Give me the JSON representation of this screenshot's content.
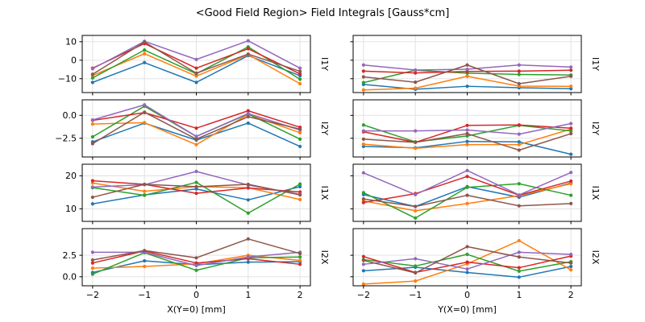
{
  "title": "<Good Field Region> Field Integrals [Gauss*cm]",
  "figure": {
    "background": "#ffffff",
    "grid_color": "#dfdfdf",
    "spine_color": "#000000"
  },
  "palette": {
    "blue": "#1f77b4",
    "orange": "#ff7f0e",
    "green": "#2ca02c",
    "red": "#d62728",
    "purple": "#9467bd",
    "brown": "#8c564b"
  },
  "chart_data": [
    {
      "type": "line",
      "grid_row": 0,
      "grid_col": 0,
      "row_label": "I1Y",
      "xlabel": "",
      "x": [
        -2,
        -1,
        0,
        1,
        2
      ],
      "xlim": [
        -2.2,
        2.2
      ],
      "xtick_labels": [
        "−2",
        "−1",
        "0",
        "1",
        "2"
      ],
      "show_xtick_labels": false,
      "ylim": [
        -17.5,
        13.4
      ],
      "grid": true,
      "show_ytick_labels": true,
      "yticks": [
        {
          "value": 10,
          "label": "10"
        },
        {
          "value": 0,
          "label": "0"
        },
        {
          "value": -10,
          "label": "−10"
        }
      ],
      "series": [
        {
          "name": "blue",
          "color": "#1f77b4",
          "values": [
            -12.0,
            -1.3,
            -12.0,
            2.5,
            -8.4
          ]
        },
        {
          "name": "orange",
          "color": "#ff7f0e",
          "values": [
            -8.3,
            3.5,
            -8.6,
            3.0,
            -12.7
          ]
        },
        {
          "name": "green",
          "color": "#2ca02c",
          "values": [
            -9.6,
            5.5,
            -7.3,
            7.2,
            -10.3
          ]
        },
        {
          "name": "red",
          "color": "#d62728",
          "values": [
            -4.3,
            9.0,
            -4.3,
            6.2,
            -7.4
          ]
        },
        {
          "name": "purple",
          "color": "#9467bd",
          "values": [
            -4.6,
            10.2,
            0.4,
            10.5,
            -4.3
          ]
        },
        {
          "name": "brown",
          "color": "#8c564b",
          "values": [
            -7.6,
            9.8,
            -7.0,
            3.3,
            -6.0
          ]
        }
      ]
    },
    {
      "type": "line",
      "grid_row": 0,
      "grid_col": 1,
      "row_label": "I1Y",
      "xlabel": "",
      "x": [
        -2,
        -1,
        0,
        1,
        2
      ],
      "xlim": [
        -2.2,
        2.2
      ],
      "xtick_labels": [
        "−2",
        "−1",
        "0",
        "1",
        "2"
      ],
      "show_xtick_labels": false,
      "ylim": [
        -17.5,
        13.4
      ],
      "grid": true,
      "show_ytick_labels": false,
      "yticks": [
        {
          "value": 10,
          "label": "10"
        },
        {
          "value": 0,
          "label": "0"
        },
        {
          "value": -10,
          "label": "−10"
        }
      ],
      "series": [
        {
          "name": "blue",
          "color": "#1f77b4",
          "values": [
            -13.1,
            -15.7,
            -14.1,
            -14.9,
            -15.4
          ]
        },
        {
          "name": "orange",
          "color": "#ff7f0e",
          "values": [
            -16.1,
            -15.1,
            -8.7,
            -14.0,
            -14.1
          ]
        },
        {
          "name": "green",
          "color": "#2ca02c",
          "values": [
            -12.1,
            -5.4,
            -7.0,
            -7.7,
            -8.0
          ]
        },
        {
          "name": "red",
          "color": "#d62728",
          "values": [
            -5.9,
            -6.9,
            -6.1,
            -5.9,
            -5.4
          ]
        },
        {
          "name": "purple",
          "color": "#9467bd",
          "values": [
            -2.6,
            -5.3,
            -4.9,
            -2.6,
            -3.7
          ]
        },
        {
          "name": "brown",
          "color": "#8c564b",
          "values": [
            -9.0,
            -11.9,
            -2.6,
            -12.7,
            -8.7
          ]
        }
      ]
    },
    {
      "type": "line",
      "grid_row": 1,
      "grid_col": 0,
      "row_label": "I2Y",
      "xlabel": "",
      "x": [
        -2,
        -1,
        0,
        1,
        2
      ],
      "xlim": [
        -2.2,
        2.2
      ],
      "xtick_labels": [
        "−2",
        "−1",
        "0",
        "1",
        "2"
      ],
      "show_xtick_labels": false,
      "ylim": [
        -4.55,
        1.7
      ],
      "grid": true,
      "show_ytick_labels": true,
      "yticks": [
        {
          "value": 0.0,
          "label": "0.0"
        },
        {
          "value": -2.5,
          "label": "−2.5"
        }
      ],
      "series": [
        {
          "name": "blue",
          "color": "#1f77b4",
          "values": [
            -2.9,
            -0.85,
            -2.7,
            -0.85,
            -3.4
          ]
        },
        {
          "name": "orange",
          "color": "#ff7f0e",
          "values": [
            -0.95,
            -0.8,
            -3.2,
            0.1,
            -1.9
          ]
        },
        {
          "name": "green",
          "color": "#2ca02c",
          "values": [
            -2.35,
            1.0,
            -2.3,
            0.15,
            -2.6
          ]
        },
        {
          "name": "red",
          "color": "#d62728",
          "values": [
            -0.55,
            0.3,
            -1.4,
            0.5,
            -1.3
          ]
        },
        {
          "name": "purple",
          "color": "#9467bd",
          "values": [
            -0.5,
            1.15,
            -2.3,
            0.2,
            -1.6
          ]
        },
        {
          "name": "brown",
          "color": "#8c564b",
          "values": [
            -3.1,
            0.35,
            -2.6,
            -0.15,
            -1.5
          ]
        }
      ]
    },
    {
      "type": "line",
      "grid_row": 1,
      "grid_col": 1,
      "row_label": "I2Y",
      "xlabel": "",
      "x": [
        -2,
        -1,
        0,
        1,
        2
      ],
      "xlim": [
        -2.2,
        2.2
      ],
      "xtick_labels": [
        "−2",
        "−1",
        "0",
        "1",
        "2"
      ],
      "show_xtick_labels": false,
      "ylim": [
        -4.55,
        1.7
      ],
      "grid": true,
      "show_ytick_labels": false,
      "yticks": [
        {
          "value": 0.0,
          "label": "0.0"
        },
        {
          "value": -2.5,
          "label": "−2.5"
        }
      ],
      "series": [
        {
          "name": "blue",
          "color": "#1f77b4",
          "values": [
            -3.4,
            -3.55,
            -2.85,
            -2.9,
            -4.25
          ]
        },
        {
          "name": "orange",
          "color": "#ff7f0e",
          "values": [
            -3.15,
            -3.6,
            -3.2,
            -3.2,
            -1.5
          ]
        },
        {
          "name": "green",
          "color": "#2ca02c",
          "values": [
            -1.05,
            -2.9,
            -2.25,
            -1.1,
            -1.7
          ]
        },
        {
          "name": "red",
          "color": "#d62728",
          "values": [
            -1.8,
            -2.95,
            -1.1,
            -1.05,
            -1.4
          ]
        },
        {
          "name": "purple",
          "color": "#9467bd",
          "values": [
            -1.7,
            -1.7,
            -1.6,
            -2.05,
            -0.9
          ]
        },
        {
          "name": "brown",
          "color": "#8c564b",
          "values": [
            -2.6,
            -2.95,
            -2.0,
            -3.8,
            -2.0
          ]
        }
      ]
    },
    {
      "type": "line",
      "grid_row": 2,
      "grid_col": 0,
      "row_label": "I1X",
      "xlabel": "",
      "x": [
        -2,
        -1,
        0,
        1,
        2
      ],
      "xlim": [
        -2.2,
        2.2
      ],
      "xtick_labels": [
        "−2",
        "−1",
        "0",
        "1",
        "2"
      ],
      "show_xtick_labels": false,
      "ylim": [
        6.2,
        23.5
      ],
      "grid": true,
      "show_ytick_labels": true,
      "yticks": [
        {
          "value": 20,
          "label": "20"
        },
        {
          "value": 10,
          "label": "10"
        }
      ],
      "series": [
        {
          "name": "blue",
          "color": "#1f77b4",
          "values": [
            11.5,
            14.2,
            16.0,
            12.7,
            16.7
          ]
        },
        {
          "name": "orange",
          "color": "#ff7f0e",
          "values": [
            17.8,
            15.3,
            16.7,
            16.4,
            12.8
          ]
        },
        {
          "name": "green",
          "color": "#2ca02c",
          "values": [
            16.4,
            14.1,
            18.0,
            8.7,
            17.5
          ]
        },
        {
          "name": "red",
          "color": "#d62728",
          "values": [
            18.5,
            17.4,
            14.7,
            16.3,
            15.1
          ]
        },
        {
          "name": "purple",
          "color": "#9467bd",
          "values": [
            16.6,
            17.3,
            21.3,
            17.2,
            14.4
          ]
        },
        {
          "name": "brown",
          "color": "#8c564b",
          "values": [
            13.5,
            17.4,
            16.7,
            17.4,
            14.2
          ]
        }
      ]
    },
    {
      "type": "line",
      "grid_row": 2,
      "grid_col": 1,
      "row_label": "I1X",
      "xlabel": "",
      "x": [
        -2,
        -1,
        0,
        1,
        2
      ],
      "xlim": [
        -2.2,
        2.2
      ],
      "xtick_labels": [
        "−2",
        "−1",
        "0",
        "1",
        "2"
      ],
      "show_xtick_labels": false,
      "ylim": [
        6.2,
        23.5
      ],
      "grid": true,
      "show_ytick_labels": false,
      "yticks": [
        {
          "value": 20,
          "label": "20"
        },
        {
          "value": 10,
          "label": "10"
        }
      ],
      "series": [
        {
          "name": "blue",
          "color": "#1f77b4",
          "values": [
            14.3,
            10.7,
            16.7,
            13.5,
            17.8
          ]
        },
        {
          "name": "orange",
          "color": "#ff7f0e",
          "values": [
            12.4,
            9.4,
            11.6,
            14.0,
            17.6
          ]
        },
        {
          "name": "green",
          "color": "#2ca02c",
          "values": [
            14.9,
            7.2,
            16.5,
            17.6,
            14.1
          ]
        },
        {
          "name": "red",
          "color": "#d62728",
          "values": [
            11.9,
            14.6,
            19.8,
            14.1,
            18.4
          ]
        },
        {
          "name": "purple",
          "color": "#9467bd",
          "values": [
            20.9,
            14.3,
            21.6,
            14.2,
            21.0
          ]
        },
        {
          "name": "brown",
          "color": "#8c564b",
          "values": [
            13.0,
            10.7,
            14.1,
            10.9,
            11.6
          ]
        }
      ]
    },
    {
      "type": "line",
      "grid_row": 3,
      "grid_col": 0,
      "row_label": "I2X",
      "xlabel": "X(Y=0) [mm]",
      "x": [
        -2,
        -1,
        0,
        1,
        2
      ],
      "xlim": [
        -2.2,
        2.2
      ],
      "xtick_labels": [
        "−2",
        "−1",
        "0",
        "1",
        "2"
      ],
      "show_xtick_labels": true,
      "ylim": [
        -1.05,
        5.6
      ],
      "grid": true,
      "show_ytick_labels": true,
      "yticks": [
        {
          "value": 2.5,
          "label": "2.5"
        },
        {
          "value": 0.0,
          "label": "0.0"
        }
      ],
      "series": [
        {
          "name": "blue",
          "color": "#1f77b4",
          "values": [
            0.5,
            1.85,
            1.4,
            1.7,
            1.75
          ]
        },
        {
          "name": "orange",
          "color": "#ff7f0e",
          "values": [
            1.0,
            1.2,
            1.5,
            2.5,
            1.9
          ]
        },
        {
          "name": "green",
          "color": "#2ca02c",
          "values": [
            0.3,
            2.8,
            0.75,
            2.2,
            2.3
          ]
        },
        {
          "name": "red",
          "color": "#d62728",
          "values": [
            1.6,
            3.0,
            1.6,
            2.1,
            1.45
          ]
        },
        {
          "name": "purple",
          "color": "#9467bd",
          "values": [
            2.85,
            2.85,
            1.3,
            2.3,
            2.85
          ]
        },
        {
          "name": "brown",
          "color": "#8c564b",
          "values": [
            1.95,
            3.05,
            2.2,
            4.4,
            2.7
          ]
        }
      ]
    },
    {
      "type": "line",
      "grid_row": 3,
      "grid_col": 1,
      "row_label": "I2X",
      "xlabel": "Y(X=0) [mm]",
      "x": [
        -2,
        -1,
        0,
        1,
        2
      ],
      "xlim": [
        -2.2,
        2.2
      ],
      "xtick_labels": [
        "−2",
        "−1",
        "0",
        "1",
        "2"
      ],
      "show_xtick_labels": true,
      "ylim": [
        -1.05,
        5.6
      ],
      "grid": true,
      "show_ytick_labels": false,
      "yticks": [
        {
          "value": 2.5,
          "label": "2.5"
        },
        {
          "value": 0.0,
          "label": "0.0"
        }
      ],
      "series": [
        {
          "name": "blue",
          "color": "#1f77b4",
          "values": [
            0.7,
            1.1,
            0.5,
            -0.05,
            1.2
          ]
        },
        {
          "name": "orange",
          "color": "#ff7f0e",
          "values": [
            -0.85,
            -0.5,
            1.5,
            4.2,
            0.8
          ]
        },
        {
          "name": "green",
          "color": "#2ca02c",
          "values": [
            2.0,
            1.25,
            2.6,
            0.65,
            1.75
          ]
        },
        {
          "name": "red",
          "color": "#d62728",
          "values": [
            2.35,
            0.5,
            1.7,
            1.05,
            2.4
          ]
        },
        {
          "name": "purple",
          "color": "#9467bd",
          "values": [
            1.45,
            2.1,
            0.9,
            2.85,
            2.6
          ]
        },
        {
          "name": "brown",
          "color": "#8c564b",
          "values": [
            1.9,
            0.45,
            3.5,
            2.3,
            1.6
          ]
        }
      ]
    }
  ]
}
